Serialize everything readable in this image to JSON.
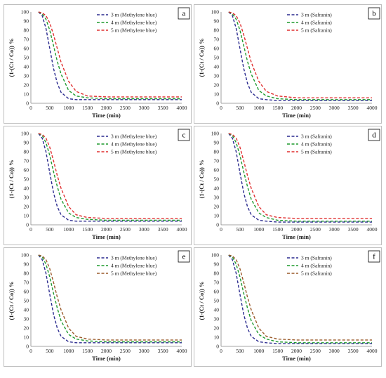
{
  "figure": {
    "x_axis_title": "Time (min)",
    "y_axis_title": "(1-(C / Co)) %",
    "x_ticks": [
      "0",
      "500",
      "1000",
      "1500",
      "2000",
      "2500",
      "3000",
      "3500",
      "4000"
    ],
    "y_ticks": [
      "0",
      "10",
      "20",
      "30",
      "40",
      "50",
      "60",
      "70",
      "80",
      "90",
      "100"
    ]
  },
  "colors": {
    "3m": "#2b2b8f",
    "4m": "#1f9a2e",
    "5m": "#e03030",
    "5m_brown": "#9a5a2a"
  },
  "chart_data": [
    {
      "type": "line",
      "panel_label": "a",
      "xlabel": "Time (min)",
      "ylabel": "(1-(Ct / Co)) %",
      "xlim": [
        0,
        4000
      ],
      "ylim": [
        0,
        100
      ],
      "legend": "top-right",
      "series": [
        {
          "name": "3 m (Methylene blue)",
          "color": "#2b2b8f",
          "x": [
            200,
            300,
            400,
            500,
            600,
            700,
            800,
            1000,
            1200,
            1500,
            2000,
            3000,
            4000
          ],
          "y": [
            100,
            96,
            82,
            60,
            38,
            22,
            12,
            5,
            4,
            4,
            4,
            4,
            4
          ]
        },
        {
          "name": "4 m (Methylene blue)",
          "color": "#1f9a2e",
          "x": [
            200,
            300,
            400,
            500,
            600,
            700,
            800,
            1000,
            1200,
            1500,
            2000,
            3000,
            4000
          ],
          "y": [
            100,
            98,
            92,
            80,
            63,
            46,
            32,
            14,
            8,
            6,
            5,
            5,
            5
          ]
        },
        {
          "name": "5 m (Methylene blue)",
          "color": "#e03030",
          "x": [
            200,
            300,
            400,
            500,
            600,
            700,
            800,
            1000,
            1200,
            1500,
            2000,
            3000,
            4000
          ],
          "y": [
            100,
            99,
            96,
            88,
            75,
            60,
            45,
            24,
            13,
            8,
            7,
            7,
            7
          ]
        }
      ]
    },
    {
      "type": "line",
      "panel_label": "b",
      "xlabel": "Time (min)",
      "ylabel": "(1-(Ct / Co)) %",
      "xlim": [
        0,
        4000
      ],
      "ylim": [
        0,
        100
      ],
      "legend": "top-right",
      "series": [
        {
          "name": "3 m (Safranin)",
          "color": "#2b2b8f",
          "x": [
            200,
            300,
            400,
            500,
            600,
            700,
            800,
            1000,
            1200,
            1500,
            2000,
            3000,
            4000
          ],
          "y": [
            100,
            96,
            82,
            60,
            38,
            22,
            12,
            5,
            4,
            3,
            3,
            3,
            3
          ]
        },
        {
          "name": "4 m (Safranin)",
          "color": "#1f9a2e",
          "x": [
            200,
            300,
            400,
            500,
            600,
            700,
            800,
            1000,
            1200,
            1500,
            2000,
            3000,
            4000
          ],
          "y": [
            100,
            98,
            92,
            80,
            63,
            46,
            32,
            14,
            8,
            5,
            4,
            4,
            4
          ]
        },
        {
          "name": "5 m (Safranin)",
          "color": "#e03030",
          "x": [
            200,
            300,
            400,
            500,
            600,
            700,
            800,
            1000,
            1200,
            1500,
            2000,
            3000,
            4000
          ],
          "y": [
            100,
            99,
            96,
            88,
            75,
            60,
            45,
            24,
            13,
            8,
            6,
            6,
            6
          ]
        }
      ]
    },
    {
      "type": "line",
      "panel_label": "c",
      "xlabel": "Time (min)",
      "ylabel": "(1-(Ct / Co)) %",
      "xlim": [
        0,
        4000
      ],
      "ylim": [
        0,
        100
      ],
      "legend": "top-right",
      "series": [
        {
          "name": "3 m (Methylene blue)",
          "color": "#2b2b8f",
          "x": [
            200,
            300,
            400,
            500,
            600,
            700,
            800,
            1000,
            1200,
            1500,
            2000,
            3000,
            4000
          ],
          "y": [
            100,
            95,
            80,
            57,
            35,
            20,
            11,
            5,
            4,
            4,
            4,
            4,
            4
          ]
        },
        {
          "name": "4 m (Methylene blue)",
          "color": "#1f9a2e",
          "x": [
            200,
            300,
            400,
            500,
            600,
            700,
            800,
            1000,
            1200,
            1500,
            2000,
            3000,
            4000
          ],
          "y": [
            100,
            98,
            90,
            76,
            58,
            42,
            28,
            13,
            8,
            6,
            5,
            5,
            5
          ]
        },
        {
          "name": "5 m (Methylene blue)",
          "color": "#e03030",
          "x": [
            200,
            300,
            400,
            500,
            600,
            700,
            800,
            1000,
            1200,
            1500,
            2000,
            3000,
            4000
          ],
          "y": [
            100,
            99,
            95,
            85,
            70,
            54,
            40,
            20,
            11,
            8,
            7,
            7,
            7
          ]
        }
      ]
    },
    {
      "type": "line",
      "panel_label": "d",
      "xlabel": "Time (min)",
      "ylabel": "(1-(Ct / Co)) %",
      "xlim": [
        0,
        4000
      ],
      "ylim": [
        0,
        100
      ],
      "legend": "top-right",
      "series": [
        {
          "name": "3 m (Safranin)",
          "color": "#2b2b8f",
          "x": [
            200,
            300,
            400,
            500,
            600,
            700,
            800,
            1000,
            1200,
            1500,
            2000,
            3000,
            4000
          ],
          "y": [
            100,
            95,
            80,
            57,
            35,
            20,
            11,
            5,
            4,
            3,
            3,
            3,
            3
          ]
        },
        {
          "name": "4 m (Safranin)",
          "color": "#1f9a2e",
          "x": [
            200,
            300,
            400,
            500,
            600,
            700,
            800,
            1000,
            1200,
            1500,
            2000,
            3000,
            4000
          ],
          "y": [
            100,
            98,
            90,
            76,
            58,
            42,
            28,
            13,
            8,
            5,
            4,
            4,
            4
          ]
        },
        {
          "name": "5 m (Safranin)",
          "color": "#e03030",
          "x": [
            200,
            300,
            400,
            500,
            600,
            700,
            800,
            1000,
            1200,
            1500,
            2000,
            3000,
            4000
          ],
          "y": [
            100,
            99,
            95,
            85,
            70,
            54,
            40,
            20,
            11,
            8,
            7,
            7,
            7
          ]
        }
      ]
    },
    {
      "type": "line",
      "panel_label": "e",
      "xlabel": "Time (min)",
      "ylabel": "(1-(Ct / Co)) %",
      "xlim": [
        0,
        4000
      ],
      "ylim": [
        0,
        100
      ],
      "legend": "top-right",
      "series": [
        {
          "name": "3 m (Methylene blue)",
          "color": "#2b2b8f",
          "x": [
            200,
            300,
            400,
            500,
            600,
            700,
            800,
            1000,
            1200,
            1500,
            2000,
            3000,
            4000
          ],
          "y": [
            100,
            95,
            80,
            57,
            35,
            20,
            11,
            5,
            4,
            4,
            4,
            4,
            4
          ]
        },
        {
          "name": "4 m (Methylene blue)",
          "color": "#1f9a2e",
          "x": [
            200,
            300,
            400,
            500,
            600,
            700,
            800,
            1000,
            1200,
            1500,
            2000,
            3000,
            4000
          ],
          "y": [
            100,
            98,
            90,
            76,
            58,
            42,
            28,
            13,
            8,
            6,
            5,
            5,
            5
          ]
        },
        {
          "name": "5 m (Methylene blue)",
          "color": "#9a5a2a",
          "x": [
            200,
            300,
            400,
            500,
            600,
            700,
            800,
            1000,
            1200,
            1500,
            2000,
            3000,
            4000
          ],
          "y": [
            100,
            99,
            95,
            85,
            70,
            54,
            40,
            20,
            11,
            8,
            7,
            7,
            7
          ]
        }
      ]
    },
    {
      "type": "line",
      "panel_label": "f",
      "xlabel": "Time (min)",
      "ylabel": "(1-(Ct / Co)) %",
      "xlim": [
        0,
        4000
      ],
      "ylim": [
        0,
        100
      ],
      "legend": "top-right",
      "series": [
        {
          "name": "3 m (Safranin)",
          "color": "#2b2b8f",
          "x": [
            200,
            300,
            400,
            500,
            600,
            700,
            800,
            1000,
            1200,
            1500,
            2000,
            3000,
            4000
          ],
          "y": [
            100,
            95,
            80,
            57,
            35,
            20,
            11,
            5,
            4,
            3,
            3,
            3,
            3
          ]
        },
        {
          "name": "4 m (Safranin)",
          "color": "#1f9a2e",
          "x": [
            200,
            300,
            400,
            500,
            600,
            700,
            800,
            1000,
            1200,
            1500,
            2000,
            3000,
            4000
          ],
          "y": [
            100,
            98,
            90,
            76,
            58,
            42,
            28,
            13,
            8,
            5,
            4,
            4,
            4
          ]
        },
        {
          "name": "5 m (Safranin)",
          "color": "#9a5a2a",
          "x": [
            200,
            300,
            400,
            500,
            600,
            700,
            800,
            1000,
            1200,
            1500,
            2000,
            3000,
            4000
          ],
          "y": [
            100,
            99,
            95,
            85,
            70,
            54,
            40,
            20,
            11,
            8,
            7,
            7,
            7
          ]
        }
      ]
    }
  ]
}
